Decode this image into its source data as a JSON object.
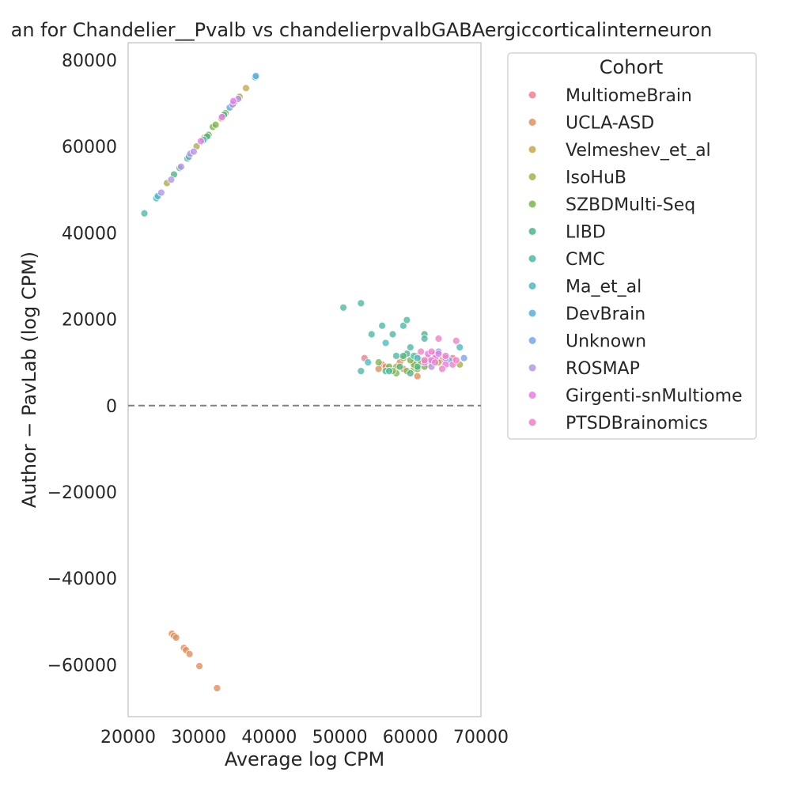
{
  "chart_data": {
    "type": "scatter",
    "title": "an for Chandelier__Pvalb vs chandelierpvalbGABAergiccorticalinterneuron",
    "xlabel": "Average log CPM",
    "ylabel": "Author − PavLab (log CPM)",
    "xlim": [
      20000,
      70000
    ],
    "ylim": [
      -72000,
      84000
    ],
    "xticks": [
      "20000",
      "30000",
      "40000",
      "50000",
      "60000",
      "70000"
    ],
    "yticks": [
      "−60000",
      "−40000",
      "−20000",
      "0",
      "20000",
      "40000",
      "60000",
      "80000"
    ],
    "reference_line": 0,
    "grid": false,
    "legend": {
      "title": "Cohort",
      "placement": "outside-right"
    },
    "series": [
      {
        "name": "MultiomeBrain",
        "color": "#f0808f",
        "points": [
          [
            53500,
            11000
          ],
          [
            56000,
            9500
          ],
          [
            61000,
            11500
          ],
          [
            63500,
            12000
          ],
          [
            64500,
            10500
          ],
          [
            62500,
            9500
          ],
          [
            66000,
            11000
          ]
        ]
      },
      {
        "name": "UCLA-ASD",
        "color": "#e08f5a",
        "points": [
          [
            26200,
            -52800
          ],
          [
            26500,
            -53300
          ],
          [
            26800,
            -53700
          ],
          [
            27900,
            -56100
          ],
          [
            28200,
            -56600
          ],
          [
            28700,
            -57500
          ],
          [
            30100,
            -60300
          ],
          [
            32600,
            -65400
          ],
          [
            55500,
            8500
          ],
          [
            56500,
            9000
          ],
          [
            58500,
            10000
          ],
          [
            61000,
            6800
          ],
          [
            62000,
            10500
          ],
          [
            59000,
            8500
          ]
        ]
      },
      {
        "name": "Velmeshev_et_al",
        "color": "#c9a84c",
        "points": [
          [
            36700,
            73500
          ],
          [
            33200,
            66500
          ],
          [
            30800,
            62000
          ],
          [
            59000,
            11000
          ],
          [
            60500,
            10000
          ],
          [
            62500,
            11000
          ],
          [
            64000,
            10000
          ]
        ]
      },
      {
        "name": "IsoHuB",
        "color": "#a8b04d",
        "points": [
          [
            25500,
            51500
          ],
          [
            29700,
            60000
          ],
          [
            35800,
            71500
          ],
          [
            58000,
            9000
          ],
          [
            60500,
            8500
          ],
          [
            67000,
            9500
          ],
          [
            61500,
            10500
          ]
        ]
      },
      {
        "name": "SZBDMulti-Seq",
        "color": "#7db54d",
        "points": [
          [
            32000,
            64500
          ],
          [
            32400,
            65000
          ],
          [
            33800,
            67700
          ],
          [
            31400,
            62700
          ],
          [
            55500,
            10000
          ],
          [
            57000,
            9000
          ],
          [
            58000,
            7500
          ],
          [
            59500,
            8000
          ],
          [
            60500,
            9500
          ],
          [
            61000,
            8500
          ],
          [
            62000,
            9000
          ],
          [
            57500,
            8000
          ],
          [
            60000,
            10500
          ],
          [
            61500,
            10000
          ]
        ]
      },
      {
        "name": "LIBD",
        "color": "#4db585",
        "points": [
          [
            26500,
            53500
          ],
          [
            27300,
            55000
          ],
          [
            31200,
            62300
          ],
          [
            33600,
            67300
          ],
          [
            56500,
            8000
          ],
          [
            58500,
            9000
          ],
          [
            59500,
            12000
          ],
          [
            60000,
            7500
          ],
          [
            61000,
            9000
          ],
          [
            62000,
            16500
          ],
          [
            59000,
            11500
          ]
        ]
      },
      {
        "name": "CMC",
        "color": "#4dbaa5",
        "points": [
          [
            22300,
            44500
          ],
          [
            28400,
            57200
          ],
          [
            30700,
            61500
          ],
          [
            50500,
            22700
          ],
          [
            53000,
            23700
          ],
          [
            54500,
            16500
          ],
          [
            56000,
            18500
          ],
          [
            57500,
            16500
          ],
          [
            59000,
            18500
          ],
          [
            59500,
            19800
          ],
          [
            58000,
            11500
          ],
          [
            60500,
            11500
          ],
          [
            53000,
            8000
          ],
          [
            57000,
            8000
          ],
          [
            60000,
            13500
          ],
          [
            62000,
            15500
          ]
        ]
      },
      {
        "name": "Ma_et_al",
        "color": "#4dbac2",
        "points": [
          [
            24000,
            48000
          ],
          [
            24200,
            48500
          ],
          [
            28600,
            57600
          ],
          [
            54000,
            10000
          ],
          [
            56500,
            14500
          ],
          [
            61000,
            11000
          ],
          [
            63000,
            10000
          ],
          [
            67000,
            13500
          ]
        ]
      },
      {
        "name": "DevBrain",
        "color": "#5aaedb",
        "points": [
          [
            38000,
            76000
          ],
          [
            38100,
            76300
          ],
          [
            35000,
            70000
          ],
          [
            34400,
            69000
          ]
        ]
      },
      {
        "name": "Unknown",
        "color": "#78a5f0",
        "points": [
          [
            67600,
            11000
          ],
          [
            64000,
            12500
          ],
          [
            65500,
            10500
          ]
        ]
      },
      {
        "name": "ROSMAP",
        "color": "#b494eb",
        "points": [
          [
            24700,
            49300
          ],
          [
            26100,
            52300
          ],
          [
            27500,
            55300
          ],
          [
            28800,
            58300
          ],
          [
            29300,
            58800
          ],
          [
            34800,
            69700
          ],
          [
            35600,
            71000
          ],
          [
            63000,
            9000
          ],
          [
            65000,
            11000
          ]
        ]
      },
      {
        "name": "Girgenti-snMultiome",
        "color": "#e97ae6",
        "points": [
          [
            30300,
            61200
          ],
          [
            33300,
            66800
          ],
          [
            34900,
            70500
          ],
          [
            62000,
            10000
          ],
          [
            63500,
            11000
          ],
          [
            64000,
            12000
          ],
          [
            65000,
            9500
          ],
          [
            62500,
            12000
          ],
          [
            63000,
            10500
          ]
        ]
      },
      {
        "name": "PTSDBrainomics",
        "color": "#f080c8",
        "points": [
          [
            64000,
            15500
          ],
          [
            66500,
            15000
          ],
          [
            65000,
            11500
          ],
          [
            63000,
            12500
          ],
          [
            62000,
            10500
          ],
          [
            64500,
            8500
          ],
          [
            66000,
            9500
          ],
          [
            61500,
            12500
          ],
          [
            63500,
            10000
          ],
          [
            66500,
            10500
          ]
        ]
      }
    ]
  }
}
